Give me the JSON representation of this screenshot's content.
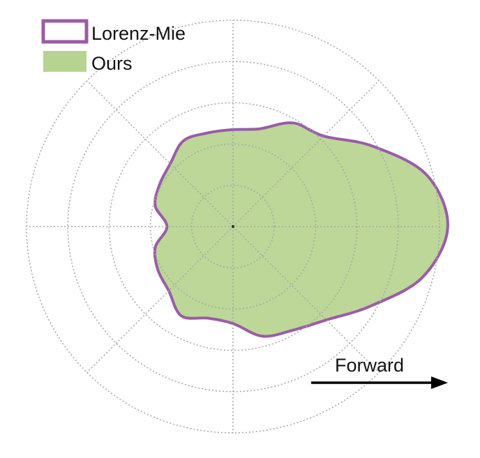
{
  "colors": {
    "grid": "#a8a8a8",
    "lorenz_mie": "#9a5ca6",
    "ours_fill": "#b6d48f",
    "arrow": "#000000",
    "text": "#111111"
  },
  "chart_data": {
    "type": "polar",
    "title": "",
    "rings": [
      1,
      2,
      3,
      4,
      5
    ],
    "spokes_deg": [
      0,
      45,
      90,
      135,
      180,
      225,
      270,
      315
    ],
    "r_max": 5,
    "grid": true,
    "legend_position": "top-left",
    "series": [
      {
        "name": "Lorenz-Mie",
        "style": "outline",
        "color": "#9a5ca6"
      },
      {
        "name": "Ours",
        "style": "fill",
        "color": "#b6d48f"
      }
    ],
    "theta_deg": [
      0,
      15,
      30,
      45,
      60,
      75,
      90,
      105,
      120,
      135,
      150,
      165,
      180,
      195,
      210,
      225,
      240,
      255,
      270,
      285,
      300,
      315,
      330,
      345
    ],
    "r": [
      5.2,
      4.85,
      3.9,
      3.1,
      2.9,
      2.45,
      2.35,
      2.35,
      2.4,
      2.15,
      2.05,
      1.95,
      1.6,
      1.95,
      2.1,
      2.2,
      2.5,
      2.3,
      2.35,
      2.75,
      2.9,
      3.2,
      3.85,
      4.75
    ],
    "annotation": {
      "text": "Forward",
      "direction_deg": 0
    }
  }
}
